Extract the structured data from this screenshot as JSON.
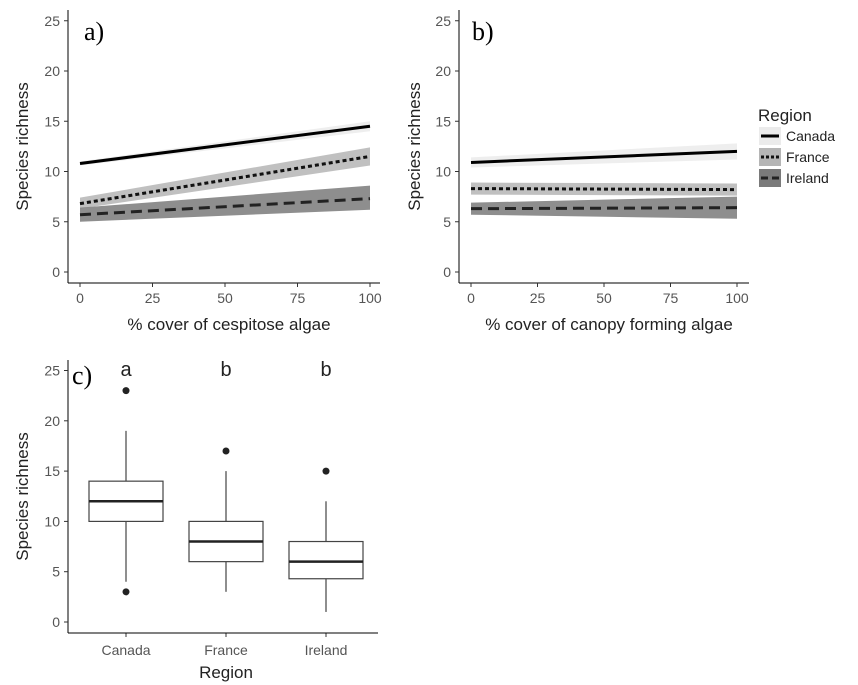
{
  "colors": {
    "Canada": "#000000",
    "France": "#111111",
    "Ireland": "#222222",
    "band_Canada": "#ebebeb",
    "band_France": "#b5b5b5",
    "band_Ireland": "#7a7a7a",
    "box_outline": "#444444"
  },
  "legend": {
    "title": "Region",
    "items": [
      {
        "label": "Canada",
        "dash": "solid"
      },
      {
        "label": "France",
        "dash": "dotted"
      },
      {
        "label": "Ireland",
        "dash": "dashed"
      }
    ]
  },
  "chart_data": [
    {
      "panel_letter": "a)",
      "type": "line",
      "xlabel": "% cover of cespitose algae",
      "ylabel": "Species richness",
      "xlim": [
        0,
        100
      ],
      "ylim": [
        0,
        25
      ],
      "xticks": [
        0,
        25,
        50,
        75,
        100
      ],
      "yticks": [
        0,
        5,
        10,
        15,
        20,
        25
      ],
      "grid": false,
      "series": [
        {
          "name": "Canada",
          "dash": "solid",
          "x": [
            0,
            100
          ],
          "y": [
            10.8,
            14.5
          ],
          "ci_low": [
            10.6,
            14.0
          ],
          "ci_high": [
            11.0,
            15.0
          ]
        },
        {
          "name": "France",
          "dash": "dotted",
          "x": [
            0,
            100
          ],
          "y": [
            6.8,
            11.5
          ],
          "ci_low": [
            6.3,
            10.6
          ],
          "ci_high": [
            7.4,
            12.4
          ]
        },
        {
          "name": "Ireland",
          "dash": "dashed",
          "x": [
            0,
            100
          ],
          "y": [
            5.7,
            7.3
          ],
          "ci_low": [
            5.0,
            6.2
          ],
          "ci_high": [
            6.4,
            8.6
          ]
        }
      ]
    },
    {
      "panel_letter": "b)",
      "type": "line",
      "xlabel": "% cover of canopy forming algae",
      "ylabel": "Species richness",
      "xlim": [
        0,
        100
      ],
      "ylim": [
        0,
        25
      ],
      "xticks": [
        0,
        25,
        50,
        75,
        100
      ],
      "yticks": [
        0,
        5,
        10,
        15,
        20,
        25
      ],
      "grid": false,
      "legend_position": "right",
      "series": [
        {
          "name": "Canada",
          "dash": "solid",
          "x": [
            0,
            100
          ],
          "y": [
            10.9,
            12.0
          ],
          "ci_low": [
            10.4,
            11.2
          ],
          "ci_high": [
            11.4,
            12.8
          ]
        },
        {
          "name": "France",
          "dash": "dotted",
          "x": [
            0,
            100
          ],
          "y": [
            8.3,
            8.2
          ],
          "ci_low": [
            7.7,
            7.6
          ],
          "ci_high": [
            8.9,
            8.8
          ]
        },
        {
          "name": "Ireland",
          "dash": "dashed",
          "x": [
            0,
            100
          ],
          "y": [
            6.3,
            6.4
          ],
          "ci_low": [
            5.7,
            5.3
          ],
          "ci_high": [
            6.9,
            7.5
          ]
        }
      ]
    },
    {
      "panel_letter": "c)",
      "type": "box",
      "xlabel": "Region",
      "ylabel": "Species richness",
      "ylim": [
        0,
        25
      ],
      "yticks": [
        0,
        5,
        10,
        15,
        20,
        25
      ],
      "grid": false,
      "categories": [
        "Canada",
        "France",
        "Ireland"
      ],
      "significance_letters": [
        "a",
        "b",
        "b"
      ],
      "boxes": [
        {
          "category": "Canada",
          "q1": 10,
          "median": 12,
          "q3": 14,
          "whisker_low": 4,
          "whisker_high": 19,
          "outliers": [
            23,
            3
          ]
        },
        {
          "category": "France",
          "q1": 6,
          "median": 8,
          "q3": 10,
          "whisker_low": 3,
          "whisker_high": 15,
          "outliers": [
            17
          ]
        },
        {
          "category": "Ireland",
          "q1": 4.3,
          "median": 6,
          "q3": 8,
          "whisker_low": 1,
          "whisker_high": 12,
          "outliers": [
            15
          ]
        }
      ]
    }
  ]
}
